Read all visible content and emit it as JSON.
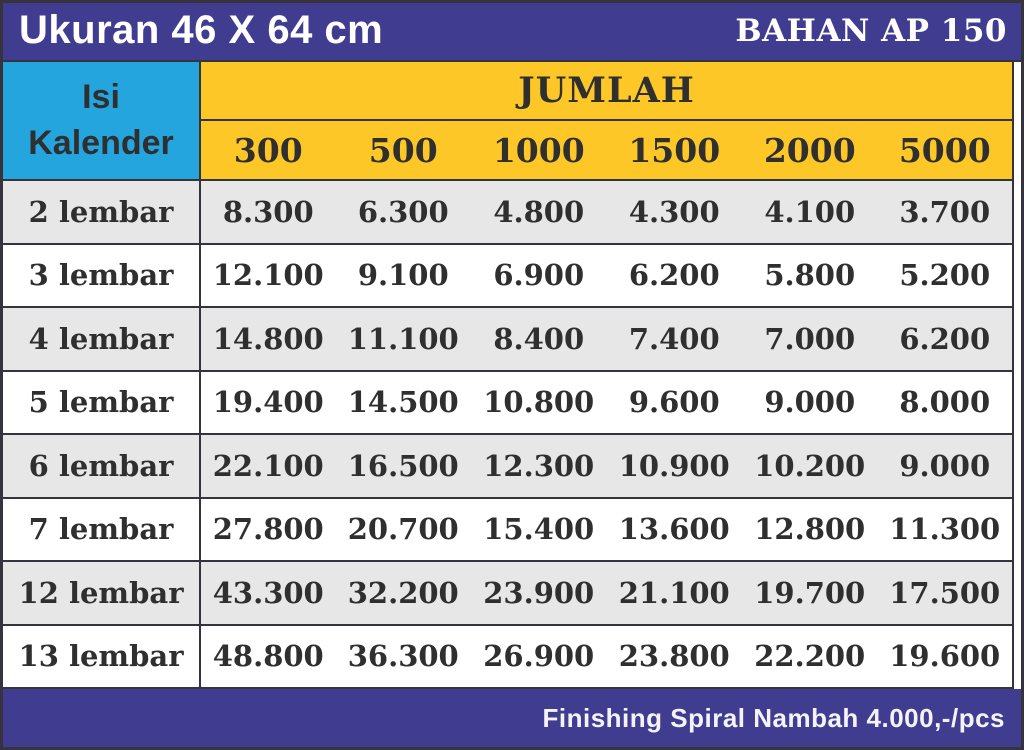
{
  "header": {
    "title": "Ukuran 46 X 64 cm",
    "material": "BAHAN AP 150"
  },
  "pricing": {
    "row_header": {
      "line1": "Isi",
      "line2": "Kalender"
    },
    "quantity_header": "JUMLAH",
    "quantities": [
      "300",
      "500",
      "1000",
      "1500",
      "2000",
      "5000"
    ],
    "rows": [
      {
        "label": "2 lembar",
        "prices": [
          "8.300",
          "6.300",
          "4.800",
          "4.300",
          "4.100",
          "3.700"
        ]
      },
      {
        "label": "3 lembar",
        "prices": [
          "12.100",
          "9.100",
          "6.900",
          "6.200",
          "5.800",
          "5.200"
        ]
      },
      {
        "label": "4 lembar",
        "prices": [
          "14.800",
          "11.100",
          "8.400",
          "7.400",
          "7.000",
          "6.200"
        ]
      },
      {
        "label": "5 lembar",
        "prices": [
          "19.400",
          "14.500",
          "10.800",
          "9.600",
          "9.000",
          "8.000"
        ]
      },
      {
        "label": "6 lembar",
        "prices": [
          "22.100",
          "16.500",
          "12.300",
          "10.900",
          "10.200",
          "9.000"
        ]
      },
      {
        "label": "7 lembar",
        "prices": [
          "27.800",
          "20.700",
          "15.400",
          "13.600",
          "12.800",
          "11.300"
        ]
      },
      {
        "label": "12 lembar",
        "prices": [
          "43.300",
          "32.200",
          "23.900",
          "21.100",
          "19.700",
          "17.500"
        ]
      },
      {
        "label": "13 lembar",
        "prices": [
          "48.800",
          "36.300",
          "26.900",
          "23.800",
          "22.200",
          "19.600"
        ]
      }
    ]
  },
  "footer": {
    "note": "Finishing Spiral Nambah 4.000,-/pcs"
  },
  "colors": {
    "navy": "#403c90",
    "cyan": "#25a5dd",
    "yellow": "#fcc727",
    "row_alt": "#e7e7e7",
    "border": "#35343c",
    "text_dark": "#2f2f2f"
  }
}
